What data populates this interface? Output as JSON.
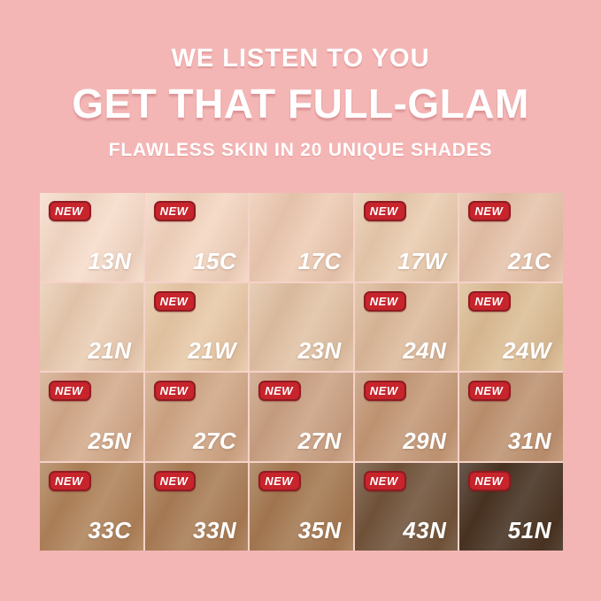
{
  "header": {
    "line1": "WE LISTEN TO YOU",
    "line2": "GET THAT FULL-GLAM",
    "line3": "FLAWLESS SKIN IN 20 UNIQUE SHADES"
  },
  "badge_label": "NEW",
  "colors": {
    "background": "#f4b6b5",
    "grid_gap": "#f6d2c8",
    "badge_fill": "#c7242c",
    "badge_border": "#8f1b22",
    "text": "#ffffff"
  },
  "shades": [
    {
      "code": "13N",
      "new": true,
      "color": "#f6dcca"
    },
    {
      "code": "15C",
      "new": true,
      "color": "#f3d6c1"
    },
    {
      "code": "17C",
      "new": false,
      "color": "#edcbb3"
    },
    {
      "code": "17W",
      "new": true,
      "color": "#e9ccaf"
    },
    {
      "code": "21C",
      "new": true,
      "color": "#e6c3aa"
    },
    {
      "code": "21N",
      "new": false,
      "color": "#e9ccb2"
    },
    {
      "code": "21W",
      "new": true,
      "color": "#e7c9a7"
    },
    {
      "code": "23N",
      "new": false,
      "color": "#e1c2a5"
    },
    {
      "code": "24N",
      "new": true,
      "color": "#dcba9b"
    },
    {
      "code": "24W",
      "new": true,
      "color": "#dcbe96"
    },
    {
      "code": "25N",
      "new": true,
      "color": "#d3aa8b"
    },
    {
      "code": "27C",
      "new": true,
      "color": "#d0a786"
    },
    {
      "code": "27N",
      "new": true,
      "color": "#caa183"
    },
    {
      "code": "29N",
      "new": true,
      "color": "#c39876"
    },
    {
      "code": "31N",
      "new": true,
      "color": "#bd9270"
    },
    {
      "code": "33C",
      "new": true,
      "color": "#ae8259"
    },
    {
      "code": "33N",
      "new": true,
      "color": "#a87c55"
    },
    {
      "code": "35N",
      "new": true,
      "color": "#a37850"
    },
    {
      "code": "43N",
      "new": true,
      "color": "#6f5239"
    },
    {
      "code": "51N",
      "new": true,
      "color": "#443020"
    }
  ]
}
